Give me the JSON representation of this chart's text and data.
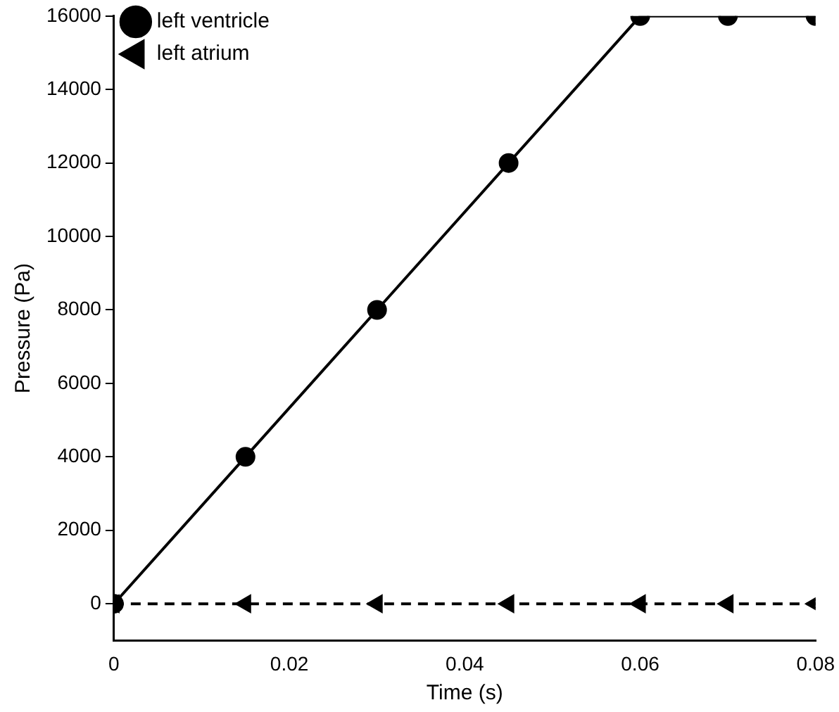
{
  "chart_data": {
    "type": "line",
    "xlabel": "Time (s)",
    "ylabel": "Pressure (Pa)",
    "xlim": [
      0,
      0.08
    ],
    "xticks": [
      0,
      0.02,
      0.04,
      0.06,
      0.08
    ],
    "ylim": [
      -1000,
      16000
    ],
    "yticks": [
      0,
      2000,
      4000,
      6000,
      8000,
      10000,
      12000,
      14000,
      16000
    ],
    "grid": false,
    "legend": "top left",
    "series": [
      {
        "name": "left ventricle",
        "color": "#000000",
        "marker": "circle",
        "line_style": "solid",
        "x": [
          0,
          0.015,
          0.03,
          0.045,
          0.06,
          0.07,
          0.08
        ],
        "values": [
          0,
          4000,
          8000,
          12000,
          16000,
          16000,
          16000
        ]
      },
      {
        "name": "left atrium",
        "color": "#000000",
        "marker": "triangle",
        "line_style": "dashed",
        "x": [
          0,
          0.015,
          0.03,
          0.045,
          0.06,
          0.07,
          0.08
        ],
        "values": [
          0,
          0,
          0,
          0,
          0,
          0,
          0
        ]
      }
    ]
  }
}
